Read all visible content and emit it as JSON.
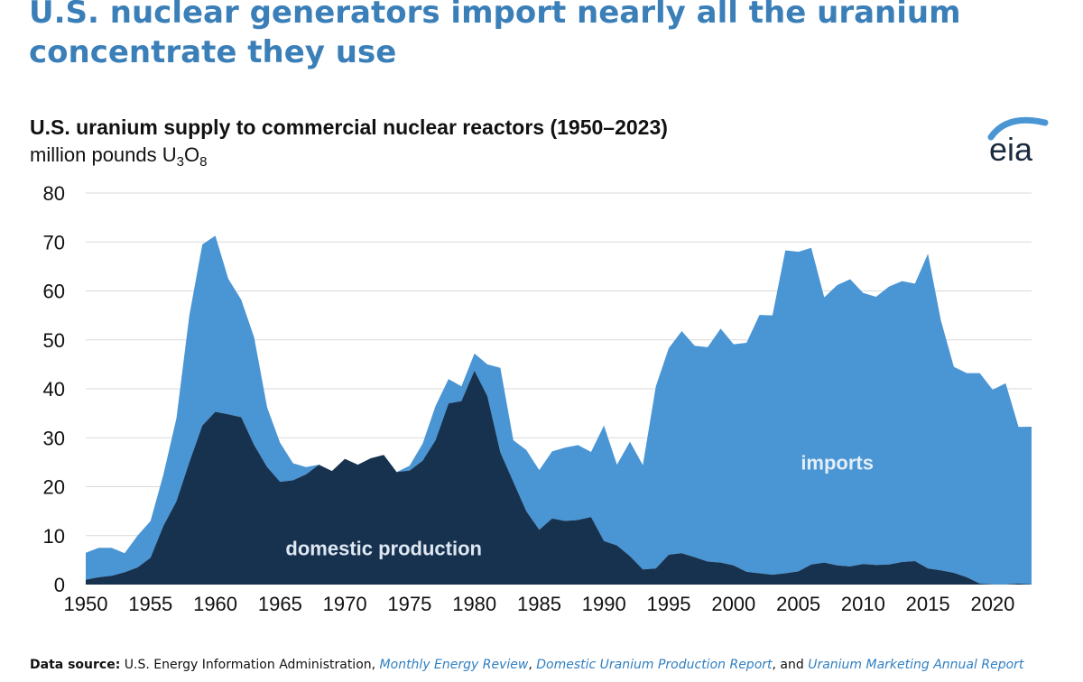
{
  "headline": "U.S. nuclear generators import nearly all the uranium concentrate they use",
  "logo_text": "eia",
  "colors": {
    "headline": "#3b7fb8",
    "imports": "#4a95d4",
    "domestic": "#17324f",
    "gridline": "#d9d9d9",
    "link": "#2f7fc1"
  },
  "source": {
    "label": "Data source:",
    "org": "U.S. Energy Information Administration,",
    "pub1": "Monthly Energy Review",
    "sep1": ",",
    "pub2": "Domestic Uranium Production Report",
    "sep2": ", and",
    "pub3": "Uranium Marketing Annual Report"
  },
  "chart_data": {
    "type": "area",
    "stacked": true,
    "title": "U.S. uranium supply to commercial nuclear reactors (1950–2023)",
    "unit_text": "million pounds U",
    "unit_sub1": "3",
    "unit_mid": "O",
    "unit_sub2": "8",
    "xlim": [
      1950,
      2023
    ],
    "ylim": [
      0,
      80
    ],
    "x_ticks": [
      1950,
      1955,
      1960,
      1965,
      1970,
      1975,
      1980,
      1985,
      1990,
      1995,
      2000,
      2005,
      2010,
      2015,
      2020
    ],
    "y_ticks": [
      0,
      10,
      20,
      30,
      40,
      50,
      60,
      70,
      80
    ],
    "grid": "horizontal",
    "x": [
      1950,
      1951,
      1952,
      1953,
      1954,
      1955,
      1956,
      1957,
      1958,
      1959,
      1960,
      1961,
      1962,
      1963,
      1964,
      1965,
      1966,
      1967,
      1968,
      1969,
      1970,
      1971,
      1972,
      1973,
      1974,
      1975,
      1976,
      1977,
      1978,
      1979,
      1980,
      1981,
      1982,
      1983,
      1984,
      1985,
      1986,
      1987,
      1988,
      1989,
      1990,
      1991,
      1992,
      1993,
      1994,
      1995,
      1996,
      1997,
      1998,
      1999,
      2000,
      2001,
      2002,
      2003,
      2004,
      2005,
      2006,
      2007,
      2008,
      2009,
      2010,
      2011,
      2012,
      2013,
      2014,
      2015,
      2016,
      2017,
      2018,
      2019,
      2020,
      2021,
      2022,
      2023
    ],
    "series": [
      {
        "name": "domestic production",
        "label_year": 1973,
        "label_value": 7.5,
        "values": [
          1.0,
          1.5,
          1.8,
          2.5,
          3.5,
          5.5,
          12,
          17,
          25,
          32.5,
          35.3,
          34.8,
          34.2,
          28.5,
          24,
          21,
          21.3,
          22.5,
          24.5,
          23.2,
          25.7,
          24.5,
          25.8,
          26.5,
          23,
          23.3,
          25.3,
          29.5,
          37,
          37.5,
          43.7,
          38.5,
          27,
          21,
          15,
          11.2,
          13.5,
          13,
          13.2,
          13.8,
          8.9,
          8,
          5.8,
          3.1,
          3.3,
          6.1,
          6.4,
          5.6,
          4.7,
          4.5,
          3.9,
          2.6,
          2.3,
          2.0,
          2.3,
          2.7,
          4.1,
          4.5,
          3.9,
          3.7,
          4.2,
          4.0,
          4.1,
          4.6,
          4.8,
          3.3,
          2.9,
          2.4,
          1.5,
          0.2,
          0.01,
          0.02,
          0.2,
          0.05
        ]
      },
      {
        "name": "imports",
        "label_year": 2008,
        "label_value": 25,
        "values": [
          5.5,
          6,
          5.7,
          3.9,
          6.5,
          7.5,
          10.5,
          17,
          30,
          37,
          36,
          27.7,
          24,
          22,
          12.2,
          8,
          3.5,
          1.5,
          0,
          0,
          0,
          0,
          0,
          0,
          0,
          1,
          3.5,
          7,
          5,
          3,
          3.5,
          6.5,
          17.3,
          8.5,
          12.5,
          12.2,
          13.7,
          15,
          15.3,
          13.3,
          23.6,
          16.5,
          23.4,
          21.3,
          37.2,
          42.2,
          45.4,
          43.2,
          43.8,
          47.8,
          45.2,
          46.8,
          52.8,
          53,
          66,
          65.3,
          64.7,
          54.2,
          57.3,
          58.7,
          55.4,
          54.8,
          56.8,
          57.4,
          56.7,
          64.3,
          51.1,
          42.1,
          41.7,
          43,
          39.8,
          41.1,
          32,
          32.2
        ]
      }
    ]
  }
}
